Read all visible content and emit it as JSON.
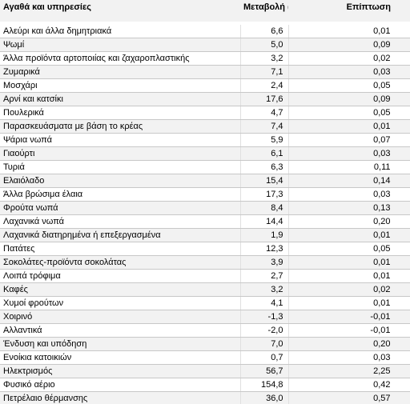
{
  "table": {
    "header": [
      "Αγαθά και υπηρεσίες",
      "Μεταβολή (%)",
      "Επίπτωση"
    ],
    "rows": [
      [
        "Αλεύρι και άλλα δημητριακά",
        "6,6",
        "0,01"
      ],
      [
        "Ψωμί",
        "5,0",
        "0,09"
      ],
      [
        "Άλλα προϊόντα αρτοποιίας και ζαχαροπλαστικής",
        "3,2",
        "0,02"
      ],
      [
        "Ζυμαρικά",
        "7,1",
        "0,03"
      ],
      [
        "Μοσχάρι",
        "2,4",
        "0,05"
      ],
      [
        "Αρνί και κατσίκι",
        "17,6",
        "0,09"
      ],
      [
        "Πουλερικά",
        "4,7",
        "0,05"
      ],
      [
        "Παρασκευάσματα με βάση το κρέας",
        "7,4",
        "0,01"
      ],
      [
        "Ψάρια νωπά",
        "5,9",
        "0,07"
      ],
      [
        "Γιαούρτι",
        "6,1",
        "0,03"
      ],
      [
        "Τυριά",
        "6,3",
        "0,11"
      ],
      [
        "Ελαιόλαδο",
        "15,4",
        "0,14"
      ],
      [
        "Άλλα βρώσιμα έλαια",
        "17,3",
        "0,03"
      ],
      [
        "Φρούτα νωπά",
        "8,4",
        "0,13"
      ],
      [
        "Λαχανικά νωπά",
        "14,4",
        "0,20"
      ],
      [
        "Λαχανικά διατηρημένα ή επεξεργασμένα",
        "1,9",
        "0,01"
      ],
      [
        "Πατάτες",
        "12,3",
        "0,05"
      ],
      [
        "Σοκολάτες-προϊόντα σοκολάτας",
        "3,9",
        "0,01"
      ],
      [
        "Λοιπά τρόφιμα",
        "2,7",
        "0,01"
      ],
      [
        "Καφές",
        "3,2",
        "0,02"
      ],
      [
        "Χυμοί φρούτων",
        "4,1",
        "0,01"
      ],
      [
        "Χοιρινό",
        "-1,3",
        "-0,01"
      ],
      [
        "Αλλαντικά",
        "-2,0",
        "-0,01"
      ],
      [
        "Ένδυση και υπόδηση",
        "7,0",
        "0,20"
      ],
      [
        "Ενοίκια κατοικιών",
        "0,7",
        "0,03"
      ],
      [
        "Ηλεκτρισμός",
        "56,7",
        "2,25"
      ],
      [
        "Φυσικό αέριο",
        "154,8",
        "0,42"
      ],
      [
        "Πετρέλαιο θέρμανσης",
        "36,0",
        "0,57"
      ]
    ]
  }
}
